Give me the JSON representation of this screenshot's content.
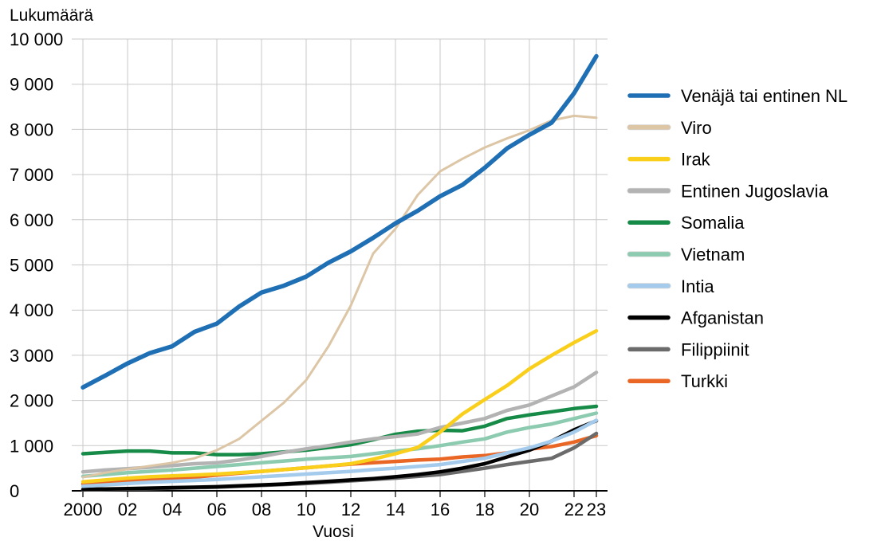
{
  "chart_data": {
    "type": "line",
    "ylabel": "Lukumäärä",
    "xlabel": "Vuosi",
    "ylim": [
      0,
      10000
    ],
    "xlim": [
      2000,
      2023
    ],
    "y_ticks": [
      0,
      1000,
      2000,
      3000,
      4000,
      5000,
      6000,
      7000,
      8000,
      9000,
      10000
    ],
    "y_tick_labels": [
      "0",
      "1 000",
      "2 000",
      "3 000",
      "4 000",
      "5 000",
      "6 000",
      "7 000",
      "8 000",
      "9 000",
      "10 000"
    ],
    "x_ticks": [
      2000,
      2002,
      2004,
      2006,
      2008,
      2010,
      2012,
      2014,
      2016,
      2018,
      2020,
      2022,
      2023
    ],
    "x_tick_labels": [
      "2000",
      "02",
      "04",
      "06",
      "08",
      "10",
      "12",
      "14",
      "16",
      "18",
      "20",
      "22",
      "23"
    ],
    "grid": "horizontal and vertical",
    "legend_position": "right",
    "x": [
      2000,
      2001,
      2002,
      2003,
      2004,
      2005,
      2006,
      2007,
      2008,
      2009,
      2010,
      2011,
      2012,
      2013,
      2014,
      2015,
      2016,
      2017,
      2018,
      2019,
      2020,
      2021,
      2022,
      2023
    ],
    "series": [
      {
        "name": "Venäjä tai entinen NL",
        "color": "#1f6fb4",
        "values": [
          2290,
          2550,
          2820,
          3050,
          3200,
          3520,
          3700,
          4080,
          4390,
          4540,
          4740,
          5050,
          5300,
          5600,
          5920,
          6200,
          6520,
          6770,
          7150,
          7580,
          7880,
          8150,
          8800,
          9620
        ]
      },
      {
        "name": "Viro",
        "color": "#dcc6a6",
        "values": [
          300,
          400,
          480,
          550,
          620,
          720,
          900,
          1150,
          1550,
          1950,
          2450,
          3200,
          4100,
          5250,
          5800,
          6550,
          7070,
          7350,
          7600,
          7800,
          7980,
          8200,
          8300,
          8260
        ]
      },
      {
        "name": "Irak",
        "color": "#f9cf1b",
        "values": [
          200,
          240,
          280,
          310,
          330,
          350,
          370,
          400,
          430,
          470,
          510,
          550,
          600,
          700,
          820,
          960,
          1300,
          1700,
          2020,
          2330,
          2700,
          3000,
          3280,
          3540
        ]
      },
      {
        "name": "Entinen Jugoslavia",
        "color": "#b3b3b3",
        "values": [
          420,
          460,
          490,
          520,
          560,
          600,
          620,
          680,
          760,
          850,
          930,
          1000,
          1080,
          1150,
          1200,
          1260,
          1400,
          1500,
          1600,
          1780,
          1900,
          2100,
          2300,
          2620
        ]
      },
      {
        "name": "Somalia",
        "color": "#168a47",
        "values": [
          820,
          850,
          880,
          880,
          840,
          840,
          800,
          800,
          820,
          860,
          900,
          960,
          1020,
          1130,
          1250,
          1320,
          1340,
          1330,
          1430,
          1600,
          1680,
          1750,
          1820,
          1870
        ]
      },
      {
        "name": "Vietnam",
        "color": "#8ccbb0",
        "values": [
          320,
          360,
          400,
          430,
          460,
          500,
          540,
          580,
          620,
          660,
          700,
          730,
          760,
          820,
          880,
          930,
          1000,
          1080,
          1150,
          1300,
          1400,
          1480,
          1600,
          1720
        ]
      },
      {
        "name": "Intia",
        "color": "#a4cbec",
        "values": [
          100,
          130,
          160,
          190,
          210,
          230,
          250,
          280,
          310,
          340,
          370,
          400,
          430,
          470,
          500,
          540,
          580,
          650,
          720,
          840,
          950,
          1100,
          1300,
          1560
        ]
      },
      {
        "name": "Afganistan",
        "color": "#000000",
        "values": [
          30,
          40,
          50,
          60,
          70,
          80,
          90,
          110,
          130,
          150,
          180,
          210,
          240,
          270,
          310,
          360,
          420,
          500,
          600,
          750,
          900,
          1100,
          1350,
          1550
        ]
      },
      {
        "name": "Filippiinit",
        "color": "#6b6b6b",
        "values": [
          20,
          30,
          40,
          50,
          60,
          70,
          80,
          100,
          120,
          140,
          160,
          190,
          220,
          250,
          280,
          320,
          360,
          430,
          500,
          580,
          650,
          720,
          950,
          1270
        ]
      },
      {
        "name": "Turkki",
        "color": "#ea6625",
        "values": [
          150,
          180,
          210,
          240,
          270,
          300,
          350,
          390,
          430,
          470,
          510,
          550,
          590,
          620,
          650,
          680,
          700,
          750,
          780,
          840,
          920,
          980,
          1080,
          1220
        ]
      }
    ]
  }
}
